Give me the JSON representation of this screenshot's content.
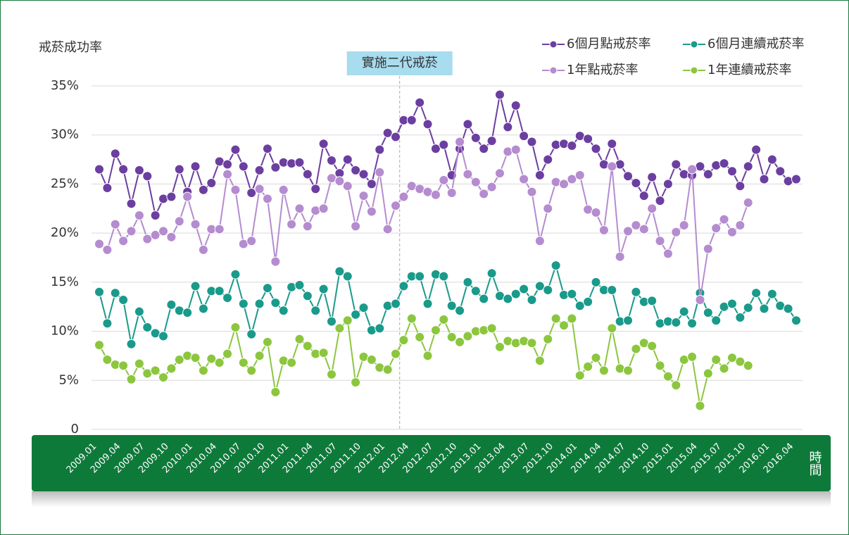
{
  "chart_data": {
    "type": "line",
    "ylabel": "戒菸成功率",
    "xlabel": "時間",
    "annotation": "實施二代戒菸",
    "categories": [
      "2009.01",
      null,
      null,
      "2009.04",
      null,
      null,
      "2009.07",
      null,
      null,
      "2009.10",
      null,
      null,
      "2010.01",
      null,
      null,
      "2010.04",
      null,
      null,
      "2010.07",
      null,
      null,
      "2010.10",
      null,
      null,
      "2011.01",
      null,
      null,
      "2011.04",
      null,
      null,
      "2011.07",
      null,
      null,
      "2011.10",
      null,
      null,
      "2012.01",
      null,
      null,
      "2012.04",
      null,
      null,
      "2012.07",
      null,
      null,
      "2012.10",
      null,
      null,
      "2013.01",
      null,
      null,
      "2013.04",
      null,
      null,
      "2013.07",
      null,
      null,
      "2013.10",
      null,
      null,
      "2014.01",
      null,
      null,
      "2014.04",
      null,
      null,
      "2014.07",
      null,
      null,
      "2014.10",
      null,
      null,
      "2015.01",
      null,
      null,
      "2015.04",
      null,
      null,
      "2015.07",
      null,
      null,
      "2015.10",
      null,
      null,
      "2016.01",
      null,
      null,
      "2016.04"
    ],
    "ylim": [
      0,
      35
    ],
    "yticks": [
      0,
      {
        "value": 5,
        "label": "5%"
      },
      {
        "value": 10,
        "label": "10%"
      },
      {
        "value": 15,
        "label": "15%"
      },
      {
        "value": 20,
        "label": "20%"
      },
      {
        "value": 25,
        "label": "25%"
      },
      {
        "value": 30,
        "label": "30%"
      },
      {
        "value": 35,
        "label": "35%"
      }
    ],
    "grid": true,
    "series": [
      {
        "name": "6個月點戒菸率",
        "color": "#6b3fa0",
        "values": [
          26.5,
          24.6,
          28.1,
          26.5,
          23.0,
          26.4,
          25.8,
          21.8,
          23.5,
          23.7,
          26.5,
          24.2,
          26.8,
          24.4,
          25.1,
          27.3,
          27.0,
          28.5,
          26.8,
          24.1,
          26.4,
          28.6,
          26.7,
          27.2,
          27.1,
          27.2,
          26.0,
          24.5,
          29.1,
          27.4,
          26.1,
          27.5,
          26.4,
          26.0,
          25.0,
          28.5,
          30.2,
          29.8,
          31.5,
          31.5,
          33.3,
          31.1,
          28.6,
          29.0,
          25.9,
          28.6,
          31.1,
          29.7,
          28.6,
          29.4,
          34.1,
          30.8,
          33.0,
          29.9,
          29.3,
          25.9,
          27.5,
          29.0,
          29.1,
          28.9,
          29.9,
          29.6,
          28.6,
          27.0,
          29.1,
          27.0,
          25.8,
          25.1,
          23.8,
          25.7,
          23.3,
          25.0,
          27.0,
          26.0,
          25.9,
          26.8,
          26.0,
          26.9,
          27.1,
          26.3,
          24.8,
          26.8,
          28.5,
          25.5,
          27.5,
          26.3,
          25.3,
          25.5
        ]
      },
      {
        "name": "6個月連續戒菸率",
        "color": "#1a9a8a",
        "values": [
          14.0,
          10.8,
          13.9,
          13.2,
          8.7,
          12.0,
          10.4,
          9.8,
          9.5,
          12.7,
          12.1,
          11.9,
          14.6,
          12.3,
          14.1,
          14.1,
          13.4,
          15.8,
          12.8,
          9.7,
          12.8,
          14.4,
          12.9,
          12.1,
          14.5,
          14.7,
          13.6,
          12.1,
          14.3,
          11.0,
          16.1,
          15.6,
          11.7,
          12.4,
          10.1,
          10.3,
          12.6,
          12.8,
          14.6,
          15.6,
          15.6,
          12.8,
          15.8,
          15.6,
          12.6,
          12.1,
          15.0,
          14.1,
          13.3,
          15.9,
          13.6,
          13.3,
          13.8,
          14.3,
          13.2,
          14.6,
          14.2,
          16.7,
          13.7,
          13.8,
          12.6,
          13.0,
          15.0,
          14.2,
          14.2,
          11.0,
          11.1,
          14.0,
          13.0,
          13.1,
          10.8,
          11.0,
          10.9,
          12.0,
          10.8,
          13.9,
          11.9,
          11.1,
          12.5,
          12.8,
          11.4,
          12.4,
          13.9,
          12.3,
          13.8,
          12.6,
          12.3,
          11.1
        ]
      },
      {
        "name": "1年點戒菸率",
        "color": "#b48ccf",
        "values": [
          18.9,
          18.3,
          20.9,
          19.2,
          20.2,
          21.8,
          19.4,
          19.8,
          20.2,
          19.6,
          21.2,
          23.7,
          20.9,
          18.3,
          20.4,
          20.4,
          26.0,
          24.4,
          18.9,
          19.2,
          24.5,
          23.5,
          17.1,
          24.4,
          20.9,
          22.5,
          20.7,
          22.3,
          22.5,
          25.6,
          25.3,
          24.8,
          20.7,
          23.8,
          22.2,
          26.2,
          20.4,
          22.8,
          23.7,
          24.8,
          24.5,
          24.2,
          23.9,
          25.4,
          24.1,
          29.3,
          26.0,
          25.2,
          24.0,
          24.7,
          26.1,
          28.3,
          28.5,
          25.5,
          24.2,
          19.2,
          22.5,
          25.2,
          25.0,
          25.5,
          25.9,
          22.4,
          22.1,
          20.3,
          26.8,
          17.6,
          20.2,
          20.8,
          20.4,
          22.5,
          19.2,
          17.9,
          20.1,
          20.8,
          26.5,
          13.2,
          18.4,
          20.5,
          21.4,
          20.1,
          20.8,
          23.1,
          null,
          null,
          null,
          null,
          null,
          null
        ]
      },
      {
        "name": "1年連續戒菸率",
        "color": "#8cc63f",
        "values": [
          8.6,
          7.1,
          6.6,
          6.5,
          5.1,
          6.7,
          5.7,
          6.0,
          5.3,
          6.2,
          7.1,
          7.5,
          7.3,
          6.0,
          7.2,
          6.8,
          7.7,
          10.4,
          6.8,
          6.0,
          7.5,
          8.9,
          3.8,
          7.0,
          6.8,
          9.2,
          8.5,
          7.7,
          7.8,
          5.6,
          10.3,
          11.1,
          4.8,
          7.4,
          7.1,
          6.3,
          6.1,
          7.7,
          9.1,
          11.3,
          9.4,
          7.5,
          10.1,
          11.2,
          9.4,
          8.9,
          9.5,
          10.0,
          10.1,
          10.3,
          8.4,
          9.0,
          8.8,
          9.0,
          8.8,
          7.0,
          9.2,
          11.3,
          10.6,
          11.3,
          5.5,
          6.4,
          7.3,
          6.0,
          10.3,
          6.2,
          6.0,
          8.2,
          8.8,
          8.5,
          6.5,
          5.4,
          4.5,
          7.1,
          7.4,
          2.4,
          5.7,
          7.1,
          6.2,
          7.3,
          6.9,
          6.5,
          null,
          null,
          null,
          null,
          null,
          null
        ]
      }
    ]
  }
}
